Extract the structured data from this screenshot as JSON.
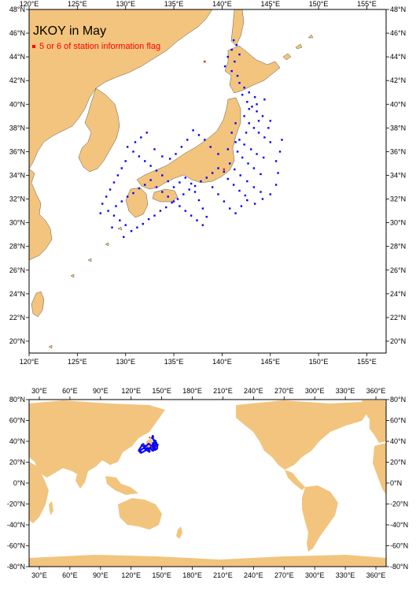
{
  "colors": {
    "land": "#f2c47d",
    "ocean": "#ffffff",
    "station": "#0000ff",
    "flagged": "#ff0000",
    "frame": "#000000"
  },
  "top_map": {
    "title": "JKOY in May",
    "legend_label": "5 or 6 of station information flag",
    "lon_range": [
      120,
      157
    ],
    "lat_range": [
      19,
      48
    ],
    "lon_ticks": [
      "120°E",
      "125°E",
      "130°E",
      "135°E",
      "140°E",
      "145°E",
      "150°E",
      "155°E"
    ],
    "lat_ticks": [
      "20°N",
      "22°N",
      "24°N",
      "26°N",
      "28°N",
      "30°N",
      "32°N",
      "34°N",
      "36°N",
      "38°N",
      "40°N",
      "42°N",
      "44°N",
      "46°N",
      "48°N"
    ]
  },
  "bottom_map": {
    "lon_range": [
      20,
      370
    ],
    "lat_range": [
      -80,
      80
    ],
    "lon_ticks": [
      "30°E",
      "60°E",
      "90°E",
      "120°E",
      "150°E",
      "180°E",
      "210°E",
      "240°E",
      "270°E",
      "300°E",
      "330°E",
      "360°E"
    ],
    "lat_ticks_left": [
      "-80°N",
      "-60°N",
      "-40°N",
      "-20°N",
      "0°N",
      "20°N",
      "40°N",
      "60°N",
      "80°N"
    ],
    "lat_ticks_right": [
      "-80°N",
      "-60°N",
      "-40°N",
      "-20°N",
      "0°N",
      "20°N",
      "40°N",
      "60°N",
      "80°N"
    ]
  },
  "chart_data": {
    "type": "scatter",
    "title": "JKOY in May",
    "series": [
      {
        "name": "",
        "color": "#0000ff",
        "points": [
          [
            141.2,
            45.4
          ],
          [
            141.5,
            45.0
          ],
          [
            141.0,
            44.6
          ],
          [
            141.8,
            44.2
          ],
          [
            140.6,
            44.0
          ],
          [
            141.3,
            43.6
          ],
          [
            140.3,
            43.2
          ],
          [
            141.0,
            42.8
          ],
          [
            141.6,
            42.4
          ],
          [
            141.8,
            41.8
          ],
          [
            142.3,
            41.4
          ],
          [
            142.8,
            41.0
          ],
          [
            143.4,
            40.6
          ],
          [
            142.1,
            40.8
          ],
          [
            142.6,
            40.2
          ],
          [
            143.1,
            39.8
          ],
          [
            143.6,
            39.4
          ],
          [
            144.2,
            39.0
          ],
          [
            145.0,
            38.6
          ],
          [
            142.3,
            39.0
          ],
          [
            142.8,
            38.4
          ],
          [
            143.3,
            38.0
          ],
          [
            143.8,
            37.6
          ],
          [
            144.4,
            37.2
          ],
          [
            145.0,
            36.8
          ],
          [
            142.5,
            37.6
          ],
          [
            141.8,
            37.0
          ],
          [
            142.3,
            36.6
          ],
          [
            143.0,
            36.2
          ],
          [
            143.6,
            35.8
          ],
          [
            144.3,
            35.5
          ],
          [
            141.6,
            36.0
          ],
          [
            142.1,
            35.5
          ],
          [
            142.7,
            35.0
          ],
          [
            143.3,
            34.6
          ],
          [
            144.0,
            34.1
          ],
          [
            140.8,
            35.0
          ],
          [
            141.3,
            34.5
          ],
          [
            141.9,
            34.0
          ],
          [
            142.6,
            33.5
          ],
          [
            143.3,
            33.0
          ],
          [
            144.0,
            32.6
          ],
          [
            140.2,
            34.3
          ],
          [
            140.6,
            33.7
          ],
          [
            141.2,
            33.2
          ],
          [
            141.8,
            32.7
          ],
          [
            142.4,
            32.3
          ],
          [
            139.6,
            34.6
          ],
          [
            139.0,
            34.2
          ],
          [
            138.4,
            33.8
          ],
          [
            137.8,
            33.5
          ],
          [
            137.2,
            33.1
          ],
          [
            136.6,
            32.8
          ],
          [
            136.0,
            32.4
          ],
          [
            135.4,
            32.0
          ],
          [
            134.8,
            31.7
          ],
          [
            134.2,
            31.3
          ],
          [
            133.6,
            31.0
          ],
          [
            133.0,
            30.6
          ],
          [
            132.4,
            30.3
          ],
          [
            131.8,
            29.9
          ],
          [
            131.2,
            29.6
          ],
          [
            130.6,
            29.3
          ],
          [
            130.0,
            29.8
          ],
          [
            129.4,
            30.2
          ],
          [
            128.8,
            30.6
          ],
          [
            128.2,
            31.0
          ],
          [
            129.0,
            31.4
          ],
          [
            129.6,
            31.8
          ],
          [
            130.2,
            32.2
          ],
          [
            130.8,
            32.5
          ],
          [
            131.4,
            32.9
          ],
          [
            132.0,
            33.2
          ],
          [
            132.6,
            33.6
          ],
          [
            133.2,
            33.0
          ],
          [
            133.8,
            32.6
          ],
          [
            134.4,
            32.2
          ],
          [
            135.0,
            31.8
          ],
          [
            135.6,
            31.4
          ],
          [
            136.2,
            31.0
          ],
          [
            136.8,
            30.6
          ],
          [
            137.4,
            30.2
          ],
          [
            138.0,
            29.8
          ],
          [
            138.4,
            30.5
          ],
          [
            138.0,
            31.2
          ],
          [
            137.6,
            31.9
          ],
          [
            137.2,
            32.6
          ],
          [
            136.8,
            33.3
          ],
          [
            136.2,
            33.8
          ],
          [
            135.6,
            33.4
          ],
          [
            135.0,
            33.0
          ],
          [
            134.4,
            33.5
          ],
          [
            133.8,
            34.0
          ],
          [
            133.2,
            34.4
          ],
          [
            132.6,
            34.8
          ],
          [
            132.0,
            35.2
          ],
          [
            131.4,
            35.6
          ],
          [
            130.8,
            36.0
          ],
          [
            130.2,
            36.4
          ],
          [
            131.0,
            36.8
          ],
          [
            131.6,
            37.2
          ],
          [
            132.2,
            37.6
          ],
          [
            130.0,
            35.2
          ],
          [
            129.6,
            34.6
          ],
          [
            129.2,
            34.0
          ],
          [
            128.8,
            33.4
          ],
          [
            128.4,
            32.8
          ],
          [
            128.0,
            32.2
          ],
          [
            127.6,
            31.6
          ],
          [
            127.4,
            30.8
          ],
          [
            128.6,
            29.6
          ],
          [
            129.8,
            28.8
          ],
          [
            139.0,
            33.0
          ],
          [
            139.6,
            32.4
          ],
          [
            140.2,
            31.8
          ],
          [
            140.8,
            31.2
          ],
          [
            141.4,
            30.8
          ],
          [
            142.0,
            31.4
          ],
          [
            142.6,
            31.9
          ],
          [
            143.4,
            31.6
          ],
          [
            144.2,
            32.0
          ],
          [
            145.0,
            32.4
          ],
          [
            145.6,
            33.2
          ],
          [
            145.8,
            34.2
          ],
          [
            145.6,
            35.2
          ],
          [
            146.0,
            36.0
          ],
          [
            146.2,
            37.0
          ],
          [
            144.8,
            38.0
          ],
          [
            143.8,
            38.6
          ],
          [
            142.8,
            39.6
          ],
          [
            143.6,
            40.0
          ],
          [
            144.4,
            40.4
          ],
          [
            141.4,
            38.4
          ],
          [
            141.0,
            37.6
          ],
          [
            141.4,
            36.8
          ],
          [
            140.6,
            36.2
          ],
          [
            139.6,
            35.8
          ],
          [
            138.8,
            36.4
          ],
          [
            138.2,
            37.0
          ],
          [
            137.6,
            37.4
          ],
          [
            137.0,
            37.8
          ],
          [
            136.4,
            37.0
          ],
          [
            135.8,
            36.4
          ],
          [
            135.2,
            35.8
          ],
          [
            134.6,
            35.4
          ],
          [
            133.8,
            35.6
          ],
          [
            133.0,
            36.2
          ]
        ]
      },
      {
        "name": "5 or 6 of station information flag",
        "color": "#ff0000",
        "points": [
          [
            138.2,
            43.6
          ],
          [
            140.2,
            34.5
          ]
        ]
      }
    ]
  }
}
